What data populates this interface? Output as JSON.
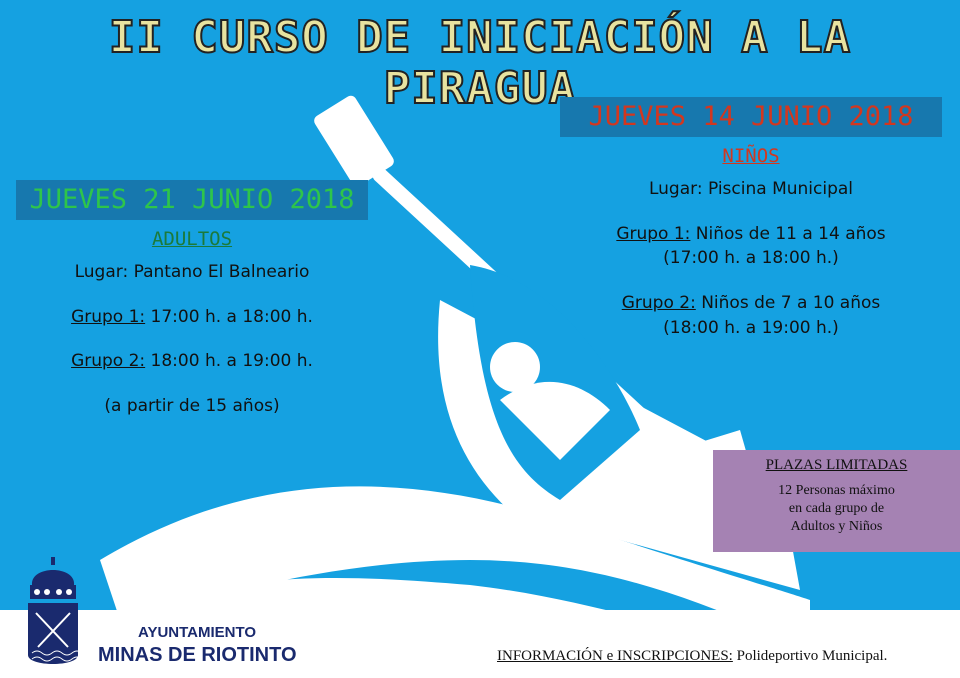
{
  "title": "II CURSO DE INICIACIÓN A LA PIRAGUA",
  "adultos": {
    "date": "JUEVES 21 JUNIO 2018",
    "category": "ADULTOS",
    "place": "Lugar: Pantano El Balneario",
    "g1_label": "Grupo 1:",
    "g1_time": "17:00 h. a 18:00 h.",
    "g2_label": "Grupo 2:",
    "g2_time": "18:00 h. a 19:00 h.",
    "note": "(a partir de 15 años)"
  },
  "ninos": {
    "date": "JUEVES 14 JUNIO 2018",
    "category": "NIÑOS",
    "place": "Lugar: Piscina Municipal",
    "g1_label": "Grupo 1:",
    "g1_desc": "Niños de 11 a 14 años",
    "g1_time": "(17:00 h. a 18:00 h.)",
    "g2_label": "Grupo 2:",
    "g2_desc": "Niños de 7 a 10 años",
    "g2_time": "(18:00 h. a 19:00 h.)"
  },
  "plazas": {
    "heading": "PLAZAS LIMITADAS",
    "line1": "12 Personas máximo",
    "line2": "en cada grupo de",
    "line3": "Adultos y Niños"
  },
  "logo": {
    "line1": "AYUNTAMIENTO",
    "line2": "MINAS DE RIOTINTO"
  },
  "info": {
    "label": "INFORMACIÓN e INSCRIPCIONES:",
    "value": "Polideportivo Municipal."
  },
  "colors": {
    "background": "#15a1e1",
    "date_box": "#1778ae",
    "adultos": "#2ec54a",
    "ninos": "#d3371f",
    "plazas": "#a582b3"
  }
}
